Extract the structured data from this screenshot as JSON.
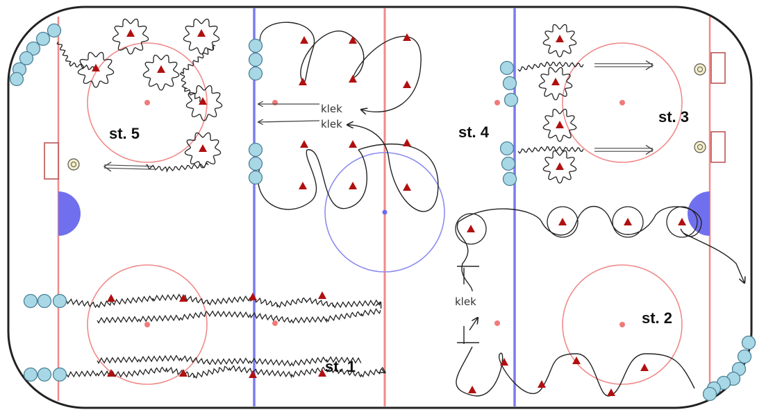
{
  "stations": {
    "st1": "st. 1",
    "st2": "st. 2",
    "st3": "st. 3",
    "st4": "st. 4",
    "st5": "st. 5"
  },
  "annotations": {
    "klek_top": "klek",
    "klek_mid": "klek",
    "klek_right": "klek"
  },
  "colors": {
    "rink_border": "#222222",
    "red_line": "#f08a8a",
    "blue_line": "#7b7bf0",
    "faceoff_circle": "#f08a8a",
    "center_circle": "#8c8cf0",
    "crease": "#7070ee",
    "player": "#a8d8e6",
    "player_stroke": "#4a7f95",
    "cone": "#b01010",
    "path": "#222222"
  },
  "icons": {
    "player": "player-circle-icon",
    "cone": "cone-triangle-icon",
    "puck": "puck-icon",
    "goal": "goal-net-icon"
  }
}
